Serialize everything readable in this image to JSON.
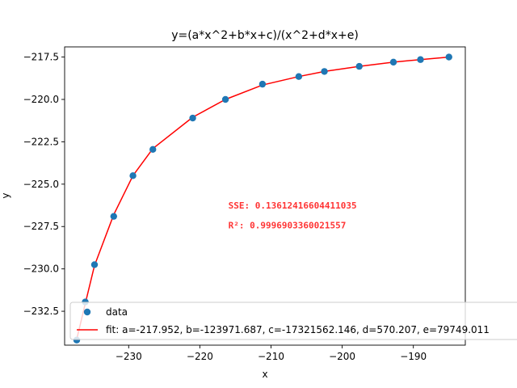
{
  "chart_data": {
    "type": "scatter",
    "title": "y=(a*x^2+b*x+c)/(x^2+d*x+e)",
    "xlabel": "x",
    "ylabel": "y",
    "xlim": [
      -239.0,
      -182.7
    ],
    "ylim": [
      -234.5,
      -216.9
    ],
    "xticks": [
      -230,
      -220,
      -210,
      -200,
      -190
    ],
    "xtick_labels": [
      "−230",
      "−220",
      "−210",
      "−200",
      "−190"
    ],
    "yticks": [
      -217.5,
      -220.0,
      -222.5,
      -225.0,
      -227.5,
      -230.0,
      -232.5
    ],
    "ytick_labels": [
      "−217.5",
      "−220.0",
      "−222.5",
      "−225.0",
      "−227.5",
      "−230.0",
      "−232.5"
    ],
    "grid": false,
    "legend_placement": "lower-left",
    "series": [
      {
        "name": "data",
        "kind": "scatter",
        "color": "#1f77b4",
        "x": [
          -237.3,
          -236.1,
          -234.8,
          -232.1,
          -229.4,
          -226.6,
          -221.0,
          -216.4,
          -211.2,
          -206.1,
          -202.5,
          -197.6,
          -192.8,
          -189.0,
          -185.0
        ],
        "y": [
          -234.2,
          -231.95,
          -229.75,
          -226.9,
          -224.5,
          -222.95,
          -221.1,
          -220.0,
          -219.1,
          -218.65,
          -218.35,
          -218.05,
          -217.8,
          -217.65,
          -217.5
        ]
      },
      {
        "name": "fit: a=-217.952, b=-123971.687, c=-17321562.146, d=570.207, e=79749.011",
        "kind": "line",
        "color": "#ff0000",
        "x": [
          -237.3,
          -236.1,
          -234.8,
          -232.1,
          -229.4,
          -226.6,
          -221.0,
          -216.4,
          -211.2,
          -206.1,
          -202.5,
          -197.6,
          -192.8,
          -189.0,
          -185.0
        ],
        "y": [
          -234.15,
          -232.05,
          -229.8,
          -226.8,
          -224.5,
          -222.9,
          -221.05,
          -220.0,
          -219.15,
          -218.65,
          -218.35,
          -218.05,
          -217.8,
          -217.65,
          -217.5
        ]
      }
    ],
    "annotations": [
      {
        "text": "SSE: 0.13612416604411035",
        "x": -216.0,
        "y": -226.45
      },
      {
        "text": "R²:  0.9996903360021557",
        "x": -216.0,
        "y": -227.6
      }
    ],
    "legend": {
      "entries": [
        {
          "label": "data",
          "marker": "circle",
          "color": "#1f77b4"
        },
        {
          "label": "fit: a=-217.952, b=-123971.687, c=-17321562.146, d=570.207, e=79749.011",
          "marker": "line",
          "color": "#ff0000"
        }
      ]
    }
  }
}
